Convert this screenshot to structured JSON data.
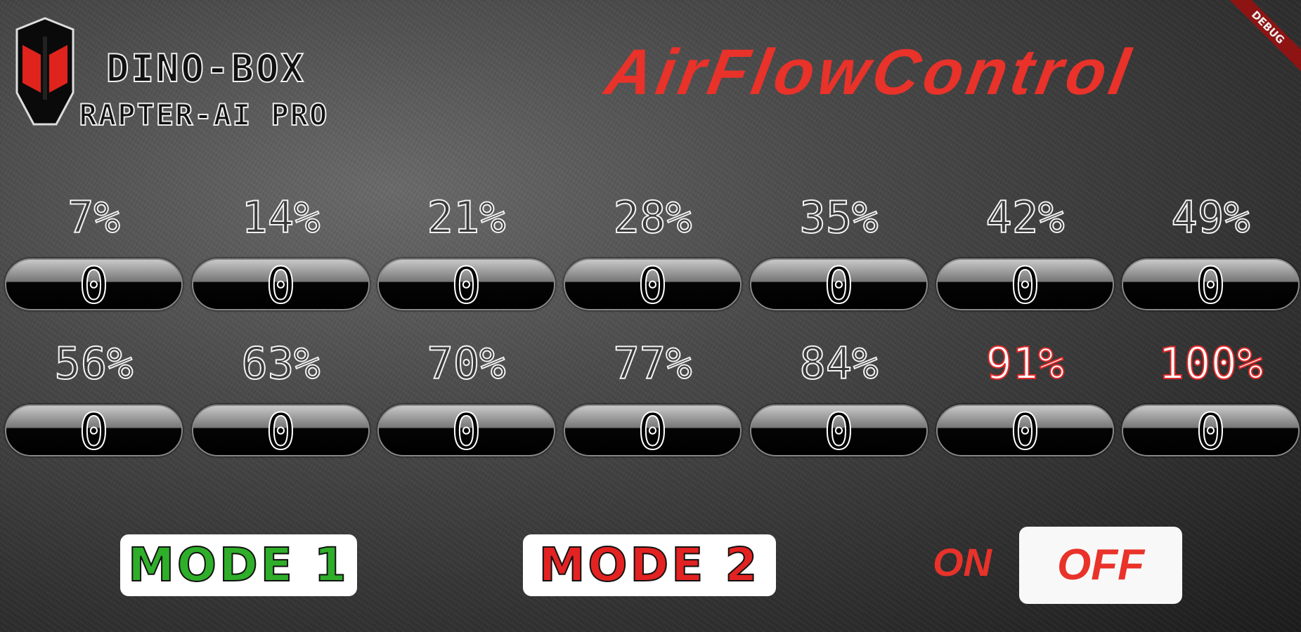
{
  "brand": {
    "line1": "DINO-BOX",
    "line2": "RAPTER-AI PRO",
    "logo_icon": "helmet-logo-icon"
  },
  "title": "AirFlowControl",
  "debug_badge": "DEBUG",
  "colors": {
    "accent": "#e8322a",
    "mode1": "#2fae2a",
    "mode2": "#e32222",
    "debug": "#8e1414"
  },
  "levels": [
    {
      "label": "7%",
      "value": "0",
      "red": false
    },
    {
      "label": "14%",
      "value": "0",
      "red": false
    },
    {
      "label": "21%",
      "value": "0",
      "red": false
    },
    {
      "label": "28%",
      "value": "0",
      "red": false
    },
    {
      "label": "35%",
      "value": "0",
      "red": false
    },
    {
      "label": "42%",
      "value": "0",
      "red": false
    },
    {
      "label": "49%",
      "value": "0",
      "red": false
    },
    {
      "label": "56%",
      "value": "0",
      "red": false
    },
    {
      "label": "63%",
      "value": "0",
      "red": false
    },
    {
      "label": "70%",
      "value": "0",
      "red": false
    },
    {
      "label": "77%",
      "value": "0",
      "red": false
    },
    {
      "label": "84%",
      "value": "0",
      "red": false
    },
    {
      "label": "91%",
      "value": "0",
      "red": true
    },
    {
      "label": "100%",
      "value": "0",
      "red": true
    }
  ],
  "controls": {
    "mode1": "MODE 1",
    "mode2": "MODE 2",
    "on": "ON",
    "off": "OFF",
    "selected_power": "OFF"
  }
}
